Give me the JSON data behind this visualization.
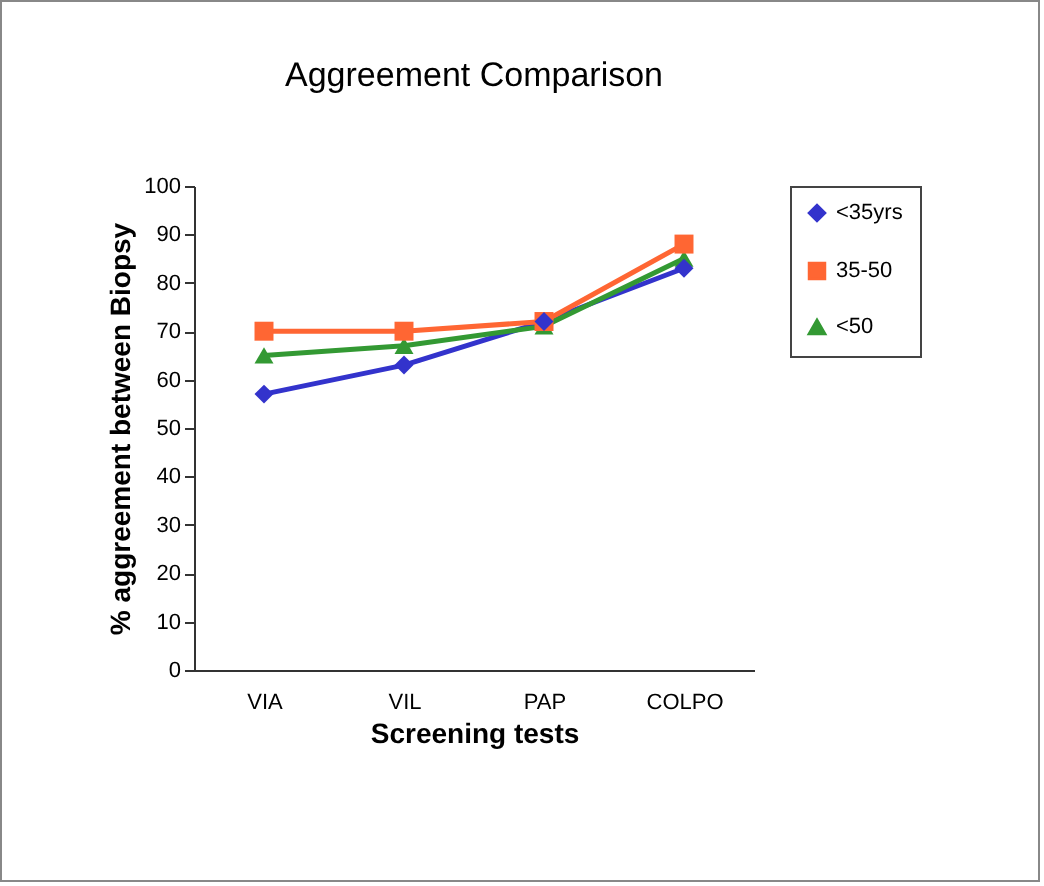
{
  "chart_data": {
    "type": "line",
    "title": "Aggreement Comparison",
    "xlabel": "Screening tests",
    "ylabel": "% aggreement between Biopsy",
    "categories": [
      "VIA",
      "VIL",
      "PAP",
      "COLPO"
    ],
    "series": [
      {
        "name": "<35yrs",
        "color": "#3333cc",
        "marker": "diamond",
        "values": [
          57,
          63,
          72,
          83
        ]
      },
      {
        "name": "35-50",
        "color": "#ff6633",
        "marker": "square",
        "values": [
          70,
          70,
          72,
          88
        ]
      },
      {
        "name": "<50",
        "color": "#339933",
        "marker": "triangle",
        "values": [
          65,
          67,
          71,
          85
        ]
      }
    ],
    "ylim": [
      0,
      100
    ],
    "yticks": [
      0,
      10,
      20,
      30,
      40,
      50,
      60,
      70,
      80,
      90,
      100
    ],
    "grid": false,
    "legend": "right"
  }
}
